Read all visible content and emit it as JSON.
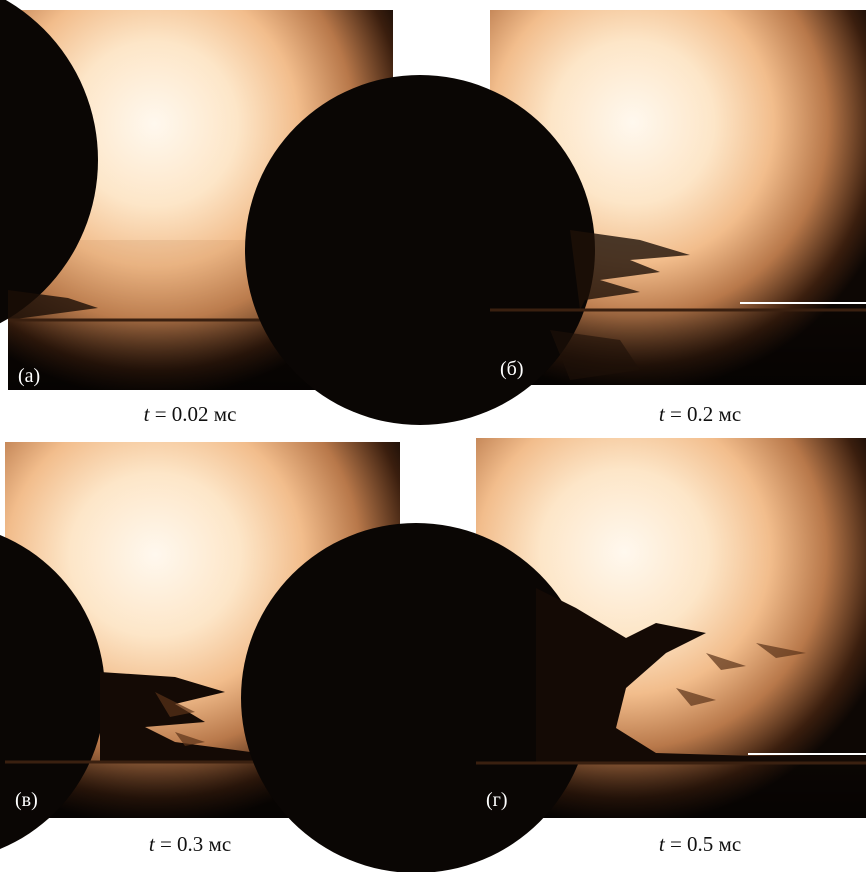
{
  "panels": [
    {
      "label": "(а)",
      "caption": {
        "variable": "t",
        "rest": "= 0.02 мс"
      }
    },
    {
      "label": "(б)",
      "caption": {
        "variable": "t",
        "rest": "= 0.2 мс"
      }
    },
    {
      "label": "(в)",
      "caption": {
        "variable": "t",
        "rest": "= 0.3 мс"
      }
    },
    {
      "label": "(г)",
      "caption": {
        "variable": "t",
        "rest": "= 0.5 мс"
      }
    }
  ]
}
